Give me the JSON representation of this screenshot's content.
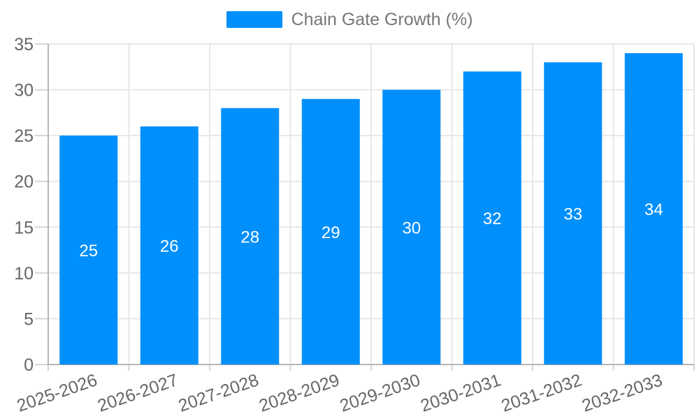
{
  "legend": {
    "label": "Chain Gate Growth (%)"
  },
  "chart_data": {
    "type": "bar",
    "title": "Chain Gate Growth (%)",
    "categories": [
      "2025-2026",
      "2026-2027",
      "2027-2028",
      "2028-2029",
      "2029-2030",
      "2030-2031",
      "2031-2032",
      "2032-2033"
    ],
    "series": [
      {
        "name": "Chain Gate Growth (%)",
        "values": [
          25,
          26,
          28,
          29,
          30,
          32,
          33,
          34
        ]
      }
    ],
    "value_labels": [
      25,
      26,
      28,
      29,
      30,
      32,
      33,
      34
    ],
    "xlabel": "",
    "ylabel": "",
    "ylim": [
      0,
      35
    ],
    "ytick_step": 5,
    "yticks": [
      0,
      5,
      10,
      15,
      20,
      25,
      30,
      35
    ],
    "grid": true,
    "legend_position": "top",
    "colors": {
      "bar": "#008ffb",
      "grid": "#e7e7e7",
      "tick": "#d4d4d4",
      "axis_border": "#b6b6b6",
      "axis_label": "#666666",
      "legend_text": "#777777",
      "value_label": "#ffffff",
      "background": "#ffffff"
    }
  }
}
